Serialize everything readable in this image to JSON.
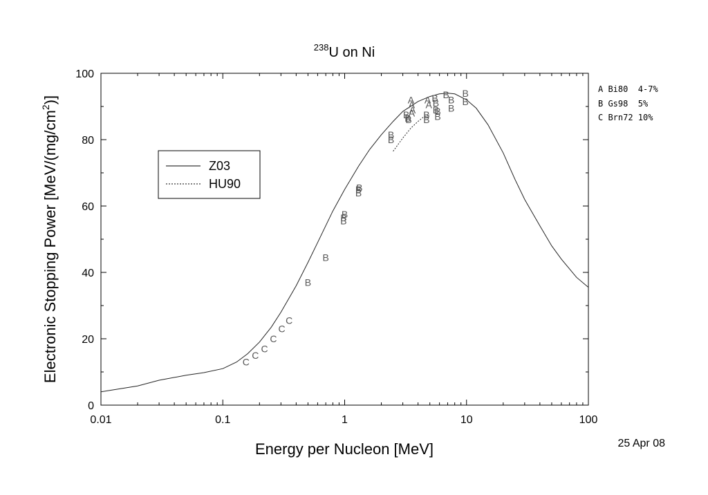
{
  "chart_data": {
    "type": "scatter",
    "title_sup": "238",
    "title_main": "U on Ni",
    "xlabel": "Energy per Nucleon [MeV]",
    "ylabel_main": "Electronic Stopping Power [MeV/(mg/cm",
    "ylabel_sup": "2",
    "ylabel_end": ")]",
    "x_scale": "log",
    "xlim": [
      0.01,
      100
    ],
    "ylim": [
      0,
      100
    ],
    "x_ticks": [
      0.01,
      0.1,
      1,
      10,
      100
    ],
    "x_tick_labels": [
      "0.01",
      "0.1",
      "1",
      "10",
      "100"
    ],
    "y_ticks": [
      0,
      20,
      40,
      60,
      80,
      100
    ],
    "y_tick_labels": [
      "0",
      "20",
      "40",
      "60",
      "80",
      "100"
    ],
    "grid": false,
    "legend": {
      "placement": "left-middle",
      "entries": [
        {
          "label": "Z03",
          "style": "solid"
        },
        {
          "label": "HU90",
          "style": "dotted"
        }
      ]
    },
    "curves": [
      {
        "label": "Z03",
        "style": "solid",
        "x": [
          0.01,
          0.02,
          0.03,
          0.05,
          0.07,
          0.1,
          0.13,
          0.16,
          0.2,
          0.25,
          0.3,
          0.4,
          0.5,
          0.6,
          0.8,
          1.0,
          1.3,
          1.6,
          2.0,
          2.5,
          3.0,
          4.0,
          5.0,
          6.0,
          7.0,
          8.0,
          10,
          12,
          15,
          20,
          25,
          30,
          40,
          50,
          60,
          80,
          100
        ],
        "y": [
          4.0,
          5.8,
          7.5,
          9.0,
          9.8,
          11.0,
          13.0,
          15.5,
          19.0,
          23.5,
          28.0,
          36.0,
          43.0,
          49.0,
          58.5,
          65.0,
          72.0,
          77.0,
          81.5,
          85.5,
          88.5,
          91.5,
          93.0,
          93.8,
          94.0,
          93.8,
          92.0,
          89.5,
          84.5,
          76.0,
          68.0,
          62.0,
          54.0,
          48.0,
          44.0,
          38.5,
          35.5
        ]
      },
      {
        "label": "HU90",
        "style": "dotted",
        "x": [
          2.5,
          3.0,
          3.5,
          4.0,
          4.5,
          5.0
        ],
        "y": [
          76.5,
          80.5,
          83.5,
          85.5,
          87.0,
          87.5
        ]
      }
    ],
    "datasets": [
      {
        "marker": "A",
        "text": "A Bi80  4-7%"
      },
      {
        "marker": "B",
        "text": "B Gs98  5%"
      },
      {
        "marker": "C",
        "text": "C Brn72 10%"
      }
    ],
    "points": [
      {
        "set": "C",
        "x": 0.155,
        "y": 13.0
      },
      {
        "set": "C",
        "x": 0.185,
        "y": 15.0
      },
      {
        "set": "C",
        "x": 0.22,
        "y": 17.0
      },
      {
        "set": "C",
        "x": 0.26,
        "y": 20.0
      },
      {
        "set": "C",
        "x": 0.305,
        "y": 23.0
      },
      {
        "set": "C",
        "x": 0.35,
        "y": 25.5
      },
      {
        "set": "B",
        "x": 0.5,
        "y": 37.0
      },
      {
        "set": "B",
        "x": 0.7,
        "y": 44.5
      },
      {
        "set": "B",
        "x": 0.98,
        "y": 55.5
      },
      {
        "set": "B",
        "x": 0.98,
        "y": 56.5
      },
      {
        "set": "B",
        "x": 1.0,
        "y": 57.5
      },
      {
        "set": "B",
        "x": 1.3,
        "y": 64.0
      },
      {
        "set": "B",
        "x": 1.3,
        "y": 65.0
      },
      {
        "set": "B",
        "x": 1.32,
        "y": 65.5
      },
      {
        "set": "B",
        "x": 2.4,
        "y": 80.0
      },
      {
        "set": "B",
        "x": 2.4,
        "y": 81.5
      },
      {
        "set": "B",
        "x": 3.2,
        "y": 87.5
      },
      {
        "set": "B",
        "x": 3.3,
        "y": 86.5
      },
      {
        "set": "B",
        "x": 3.35,
        "y": 86.0
      },
      {
        "set": "A",
        "x": 3.5,
        "y": 92.0
      },
      {
        "set": "A",
        "x": 3.55,
        "y": 90.5
      },
      {
        "set": "A",
        "x": 3.6,
        "y": 89.0
      },
      {
        "set": "A",
        "x": 3.55,
        "y": 88.0
      },
      {
        "set": "A",
        "x": 4.8,
        "y": 92.0
      },
      {
        "set": "A",
        "x": 4.9,
        "y": 90.5
      },
      {
        "set": "B",
        "x": 4.7,
        "y": 87.5
      },
      {
        "set": "B",
        "x": 4.7,
        "y": 86.0
      },
      {
        "set": "B",
        "x": 5.5,
        "y": 92.5
      },
      {
        "set": "B",
        "x": 5.6,
        "y": 91.0
      },
      {
        "set": "B",
        "x": 5.6,
        "y": 89.0
      },
      {
        "set": "B",
        "x": 5.8,
        "y": 88.5
      },
      {
        "set": "B",
        "x": 5.8,
        "y": 87.0
      },
      {
        "set": "B",
        "x": 6.8,
        "y": 93.5
      },
      {
        "set": "B",
        "x": 7.5,
        "y": 92.0
      },
      {
        "set": "B",
        "x": 7.5,
        "y": 89.5
      },
      {
        "set": "B",
        "x": 9.8,
        "y": 94.0
      },
      {
        "set": "B",
        "x": 9.8,
        "y": 91.5
      }
    ],
    "date_stamp": "25 Apr 08"
  }
}
